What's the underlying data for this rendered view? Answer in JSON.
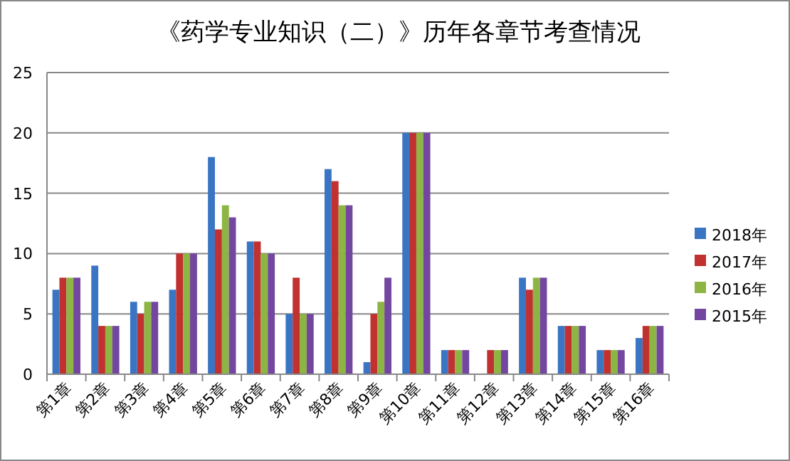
{
  "chart_data": {
    "type": "bar",
    "title": "《药学专业知识（二）》历年各章节考查情况",
    "categories": [
      "第1章",
      "第2章",
      "第3章",
      "第4章",
      "第5章",
      "第6章",
      "第7章",
      "第8章",
      "第9章",
      "第10章",
      "第11章",
      "第12章",
      "第13章",
      "第14章",
      "第15章",
      "第16章"
    ],
    "series": [
      {
        "name": "2018年",
        "color": "#3a75c4",
        "values": [
          7,
          9,
          6,
          7,
          18,
          11,
          5,
          17,
          1,
          20,
          2,
          0,
          8,
          4,
          2,
          3
        ]
      },
      {
        "name": "2017年",
        "color": "#c0312f",
        "values": [
          8,
          4,
          5,
          10,
          12,
          11,
          8,
          16,
          5,
          20,
          2,
          2,
          7,
          4,
          2,
          4
        ]
      },
      {
        "name": "2016年",
        "color": "#8db543",
        "values": [
          8,
          4,
          6,
          10,
          14,
          10,
          5,
          14,
          6,
          20,
          2,
          2,
          8,
          4,
          2,
          4
        ]
      },
      {
        "name": "2015年",
        "color": "#7346a0",
        "values": [
          8,
          4,
          6,
          10,
          13,
          10,
          5,
          14,
          8,
          20,
          2,
          2,
          8,
          4,
          2,
          4
        ]
      }
    ],
    "ylim": [
      0,
      25
    ],
    "yticks": [
      0,
      5,
      10,
      15,
      20,
      25
    ],
    "grid": "y",
    "legend": "right"
  }
}
